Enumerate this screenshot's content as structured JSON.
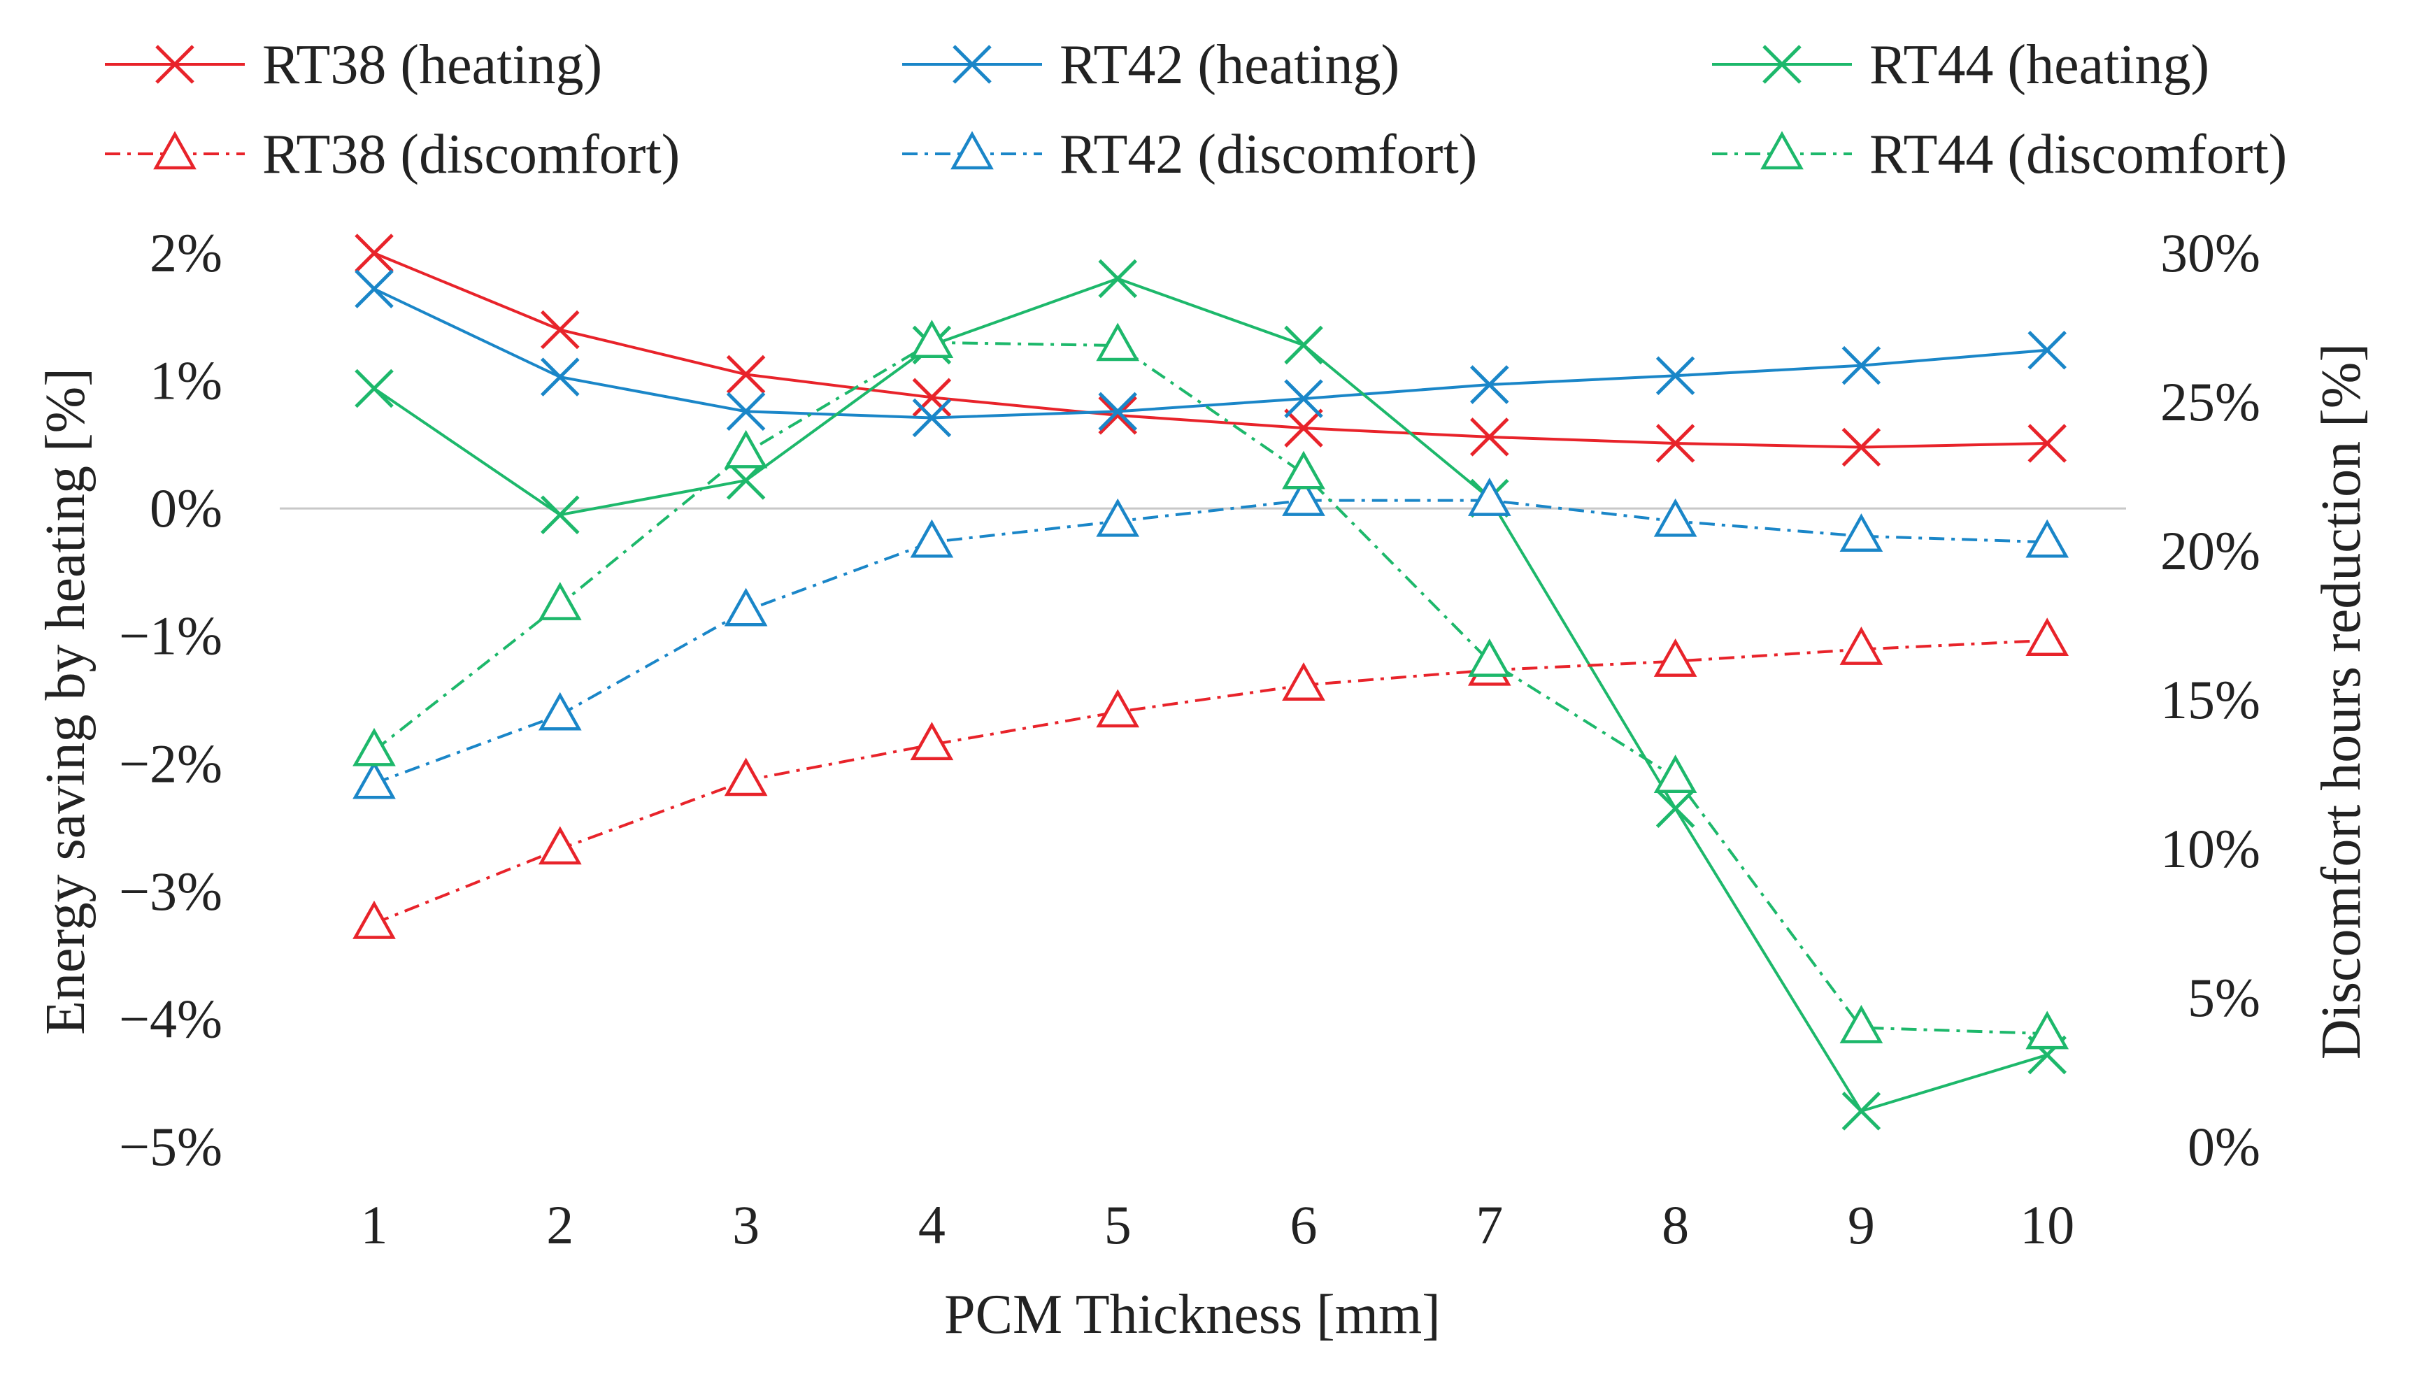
{
  "chart_data": {
    "type": "line",
    "title": "",
    "x": [
      1,
      2,
      3,
      4,
      5,
      6,
      7,
      8,
      9,
      10
    ],
    "xlabel": "PCM Thickness [mm]",
    "ylabel": "Energy saving  by heating [%]",
    "y2label": "Discomfort hours reduction [%]",
    "ylim": [
      -5,
      2
    ],
    "y2lim": [
      0,
      30
    ],
    "yticks": [
      "2%",
      "1%",
      "0%",
      "−1%",
      "−2%",
      "−3%",
      "−4%",
      "−5%"
    ],
    "y2ticks": [
      "30%",
      "25%",
      "20%",
      "15%",
      "10%",
      "5%",
      "0%"
    ],
    "xticks": [
      "1",
      "2",
      "3",
      "4",
      "5",
      "6",
      "7",
      "8",
      "9",
      "10"
    ],
    "zero_line": true,
    "legend_position": "top",
    "series": [
      {
        "name": "RT38 (heating)",
        "axis": "left",
        "color": "#e8232a",
        "style": "solid",
        "marker": "x",
        "values": [
          2.0,
          1.4,
          1.05,
          0.87,
          0.73,
          0.63,
          0.56,
          0.51,
          0.48,
          0.51
        ]
      },
      {
        "name": "RT42 (heating)",
        "axis": "left",
        "color": "#1a86c8",
        "style": "solid",
        "marker": "x",
        "values": [
          1.72,
          1.03,
          0.76,
          0.71,
          0.76,
          0.86,
          0.97,
          1.04,
          1.12,
          1.24
        ]
      },
      {
        "name": "RT44  (heating)",
        "axis": "left",
        "color": "#1db86b",
        "style": "solid",
        "marker": "x",
        "values": [
          0.94,
          -0.05,
          0.22,
          1.28,
          1.8,
          1.28,
          0.08,
          -2.35,
          -4.72,
          -4.28
        ]
      },
      {
        "name": "RT38 (discomfort)",
        "axis": "right",
        "color": "#e8232a",
        "style": "dashdot",
        "marker": "triangle",
        "values": [
          7.5,
          10.0,
          12.3,
          13.5,
          14.6,
          15.5,
          16.0,
          16.3,
          16.7,
          17.0
        ]
      },
      {
        "name": "RT42 (discomfort)",
        "axis": "right",
        "color": "#1a86c8",
        "style": "dashdot",
        "marker": "triangle",
        "values": [
          12.2,
          14.5,
          18.0,
          20.3,
          21.0,
          21.7,
          21.7,
          21.0,
          20.5,
          20.3
        ]
      },
      {
        "name": "RT44 (discomfort)",
        "axis": "right",
        "color": "#1db86b",
        "style": "dashdot",
        "marker": "triangle",
        "values": [
          13.3,
          18.2,
          23.3,
          27.0,
          26.9,
          22.6,
          16.3,
          12.4,
          4.0,
          3.8
        ]
      }
    ]
  }
}
